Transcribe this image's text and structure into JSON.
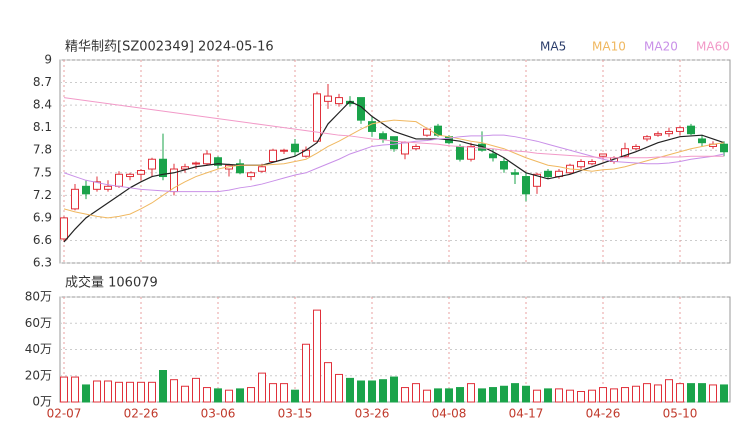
{
  "chart_data": [
    {
      "type": "candlestick",
      "title": "精华制药[SZ002349] 2024-05-16",
      "categories": [
        "02-07",
        null,
        null,
        null,
        null,
        null,
        null,
        "02-26",
        null,
        null,
        null,
        null,
        null,
        null,
        "03-06",
        null,
        null,
        null,
        null,
        null,
        null,
        "03-15",
        null,
        null,
        null,
        null,
        null,
        null,
        "03-26",
        null,
        null,
        null,
        null,
        null,
        null,
        "04-08",
        null,
        null,
        null,
        null,
        null,
        null,
        "04-17",
        null,
        null,
        null,
        null,
        null,
        null,
        "04-26",
        null,
        null,
        null,
        null,
        null,
        null,
        "05-10",
        null,
        null,
        null,
        null
      ],
      "open": [
        6.62,
        7.02,
        7.32,
        7.28,
        7.28,
        7.32,
        7.45,
        7.48,
        7.55,
        7.68,
        7.25,
        7.55,
        7.62,
        7.62,
        7.7,
        7.55,
        7.62,
        7.45,
        7.52,
        7.65,
        7.8,
        7.88,
        7.72,
        7.92,
        8.45,
        8.42,
        8.45,
        8.5,
        8.18,
        8.02,
        7.98,
        7.75,
        7.82,
        8.0,
        8.12,
        7.98,
        7.85,
        7.68,
        7.88,
        7.75,
        7.65,
        7.5,
        7.45,
        7.32,
        7.52,
        7.45,
        7.5,
        7.58,
        7.62,
        7.72,
        7.65,
        7.72,
        7.82,
        7.95,
        8.0,
        8.02,
        8.05,
        8.12,
        7.95,
        7.85,
        7.88
      ],
      "high": [
        6.92,
        7.35,
        7.4,
        7.45,
        7.4,
        7.52,
        7.5,
        7.55,
        7.7,
        8.02,
        7.62,
        7.62,
        7.65,
        7.8,
        7.72,
        7.62,
        7.68,
        7.52,
        7.62,
        7.82,
        7.82,
        7.95,
        7.85,
        8.58,
        8.68,
        8.55,
        8.52,
        8.5,
        8.25,
        8.05,
        7.98,
        7.92,
        7.88,
        8.1,
        8.15,
        8.0,
        7.88,
        7.9,
        8.05,
        7.82,
        7.7,
        7.55,
        7.5,
        7.5,
        7.55,
        7.55,
        7.62,
        7.68,
        7.68,
        7.75,
        7.72,
        7.9,
        7.88,
        8.0,
        8.05,
        8.1,
        8.12,
        8.15,
        8.0,
        7.92,
        7.92
      ],
      "low": [
        6.58,
        7.0,
        7.15,
        7.25,
        7.25,
        7.3,
        7.4,
        7.4,
        7.45,
        7.4,
        7.2,
        7.5,
        7.55,
        7.6,
        7.55,
        7.45,
        7.48,
        7.4,
        7.5,
        7.65,
        7.75,
        7.72,
        7.7,
        7.92,
        8.35,
        8.38,
        8.38,
        8.15,
        7.98,
        7.9,
        7.78,
        7.68,
        7.8,
        7.98,
        7.98,
        7.88,
        7.65,
        7.65,
        7.78,
        7.65,
        7.5,
        7.35,
        7.12,
        7.22,
        7.42,
        7.42,
        7.48,
        7.55,
        7.6,
        7.68,
        7.62,
        7.7,
        7.8,
        7.92,
        7.98,
        7.98,
        8.0,
        8.0,
        7.85,
        7.82,
        7.72
      ],
      "close": [
        6.9,
        7.28,
        7.22,
        7.38,
        7.32,
        7.48,
        7.48,
        7.53,
        7.68,
        7.45,
        7.55,
        7.58,
        7.63,
        7.75,
        7.6,
        7.6,
        7.5,
        7.5,
        7.58,
        7.8,
        7.8,
        7.78,
        7.8,
        8.55,
        8.52,
        8.5,
        8.42,
        8.2,
        8.05,
        7.95,
        7.82,
        7.9,
        7.85,
        8.08,
        8.0,
        7.9,
        7.68,
        7.85,
        7.8,
        7.7,
        7.55,
        7.48,
        7.22,
        7.48,
        7.45,
        7.52,
        7.6,
        7.65,
        7.65,
        7.75,
        7.7,
        7.82,
        7.85,
        7.98,
        8.02,
        8.05,
        8.1,
        8.02,
        7.9,
        7.88,
        7.78
      ],
      "up_color": "#e0303a",
      "down_color": "#1aa34a",
      "series": [
        {
          "name": "MA5",
          "color": "#222222",
          "values": [
            6.58,
            6.75,
            6.9,
            7.0,
            7.1,
            7.2,
            7.3,
            7.38,
            7.45,
            7.48,
            7.5,
            7.54,
            7.58,
            7.6,
            7.62,
            7.61,
            7.6,
            7.6,
            7.6,
            7.64,
            7.68,
            7.72,
            7.8,
            7.9,
            8.15,
            8.3,
            8.45,
            8.38,
            8.25,
            8.15,
            8.05,
            8.0,
            7.95,
            7.95,
            7.95,
            7.94,
            7.92,
            7.88,
            7.85,
            7.78,
            7.7,
            7.6,
            7.5,
            7.46,
            7.42,
            7.45,
            7.48,
            7.53,
            7.58,
            7.63,
            7.68,
            7.73,
            7.78,
            7.84,
            7.9,
            7.94,
            7.98,
            7.99,
            8.0,
            7.95,
            7.9
          ]
        },
        {
          "name": "MA10",
          "color": "#f0b860",
          "values": [
            7.02,
            6.98,
            6.95,
            6.92,
            6.9,
            6.92,
            6.95,
            7.02,
            7.1,
            7.2,
            7.3,
            7.38,
            7.45,
            7.5,
            7.55,
            7.58,
            7.6,
            7.6,
            7.6,
            7.61,
            7.62,
            7.65,
            7.68,
            7.76,
            7.85,
            7.92,
            8.0,
            8.08,
            8.15,
            8.18,
            8.2,
            8.19,
            8.18,
            8.09,
            8.0,
            7.98,
            7.95,
            7.92,
            7.9,
            7.86,
            7.82,
            7.76,
            7.7,
            7.65,
            7.6,
            7.58,
            7.55,
            7.54,
            7.52,
            7.54,
            7.55,
            7.58,
            7.62,
            7.66,
            7.7,
            7.74,
            7.78,
            7.82,
            7.85,
            7.88,
            7.9
          ]
        },
        {
          "name": "MA20",
          "color": "#c990e8",
          "values": [
            7.5,
            7.45,
            7.4,
            7.37,
            7.34,
            7.32,
            7.3,
            7.28,
            7.27,
            7.26,
            7.25,
            7.25,
            7.25,
            7.25,
            7.25,
            7.27,
            7.3,
            7.32,
            7.35,
            7.39,
            7.43,
            7.47,
            7.5,
            7.56,
            7.62,
            7.68,
            7.75,
            7.8,
            7.85,
            7.87,
            7.88,
            7.9,
            7.92,
            7.93,
            7.95,
            7.96,
            7.98,
            7.99,
            7.99,
            8.0,
            8.0,
            7.98,
            7.95,
            7.92,
            7.88,
            7.84,
            7.8,
            7.76,
            7.72,
            7.68,
            7.65,
            7.64,
            7.63,
            7.62,
            7.62,
            7.63,
            7.65,
            7.68,
            7.7,
            7.72,
            7.75
          ]
        },
        {
          "name": "MA60",
          "color": "#f29ac8",
          "values": [
            8.5,
            8.48,
            8.46,
            8.44,
            8.42,
            8.4,
            8.38,
            8.36,
            8.34,
            8.32,
            8.3,
            8.28,
            8.26,
            8.24,
            8.22,
            8.2,
            8.18,
            8.16,
            8.14,
            8.12,
            8.1,
            8.08,
            8.06,
            8.04,
            8.02,
            8.0,
            7.99,
            7.97,
            7.95,
            7.94,
            7.92,
            7.91,
            7.9,
            7.89,
            7.88,
            7.86,
            7.85,
            7.84,
            7.83,
            7.82,
            7.8,
            7.79,
            7.78,
            7.76,
            7.75,
            7.74,
            7.73,
            7.72,
            7.71,
            7.7,
            7.7,
            7.7,
            7.7,
            7.7,
            7.71,
            7.71,
            7.71,
            7.72,
            7.72,
            7.72,
            7.72
          ]
        }
      ],
      "ylim": [
        6.3,
        9
      ],
      "yticks": [
        6.3,
        6.6,
        6.9,
        7.2,
        7.5,
        7.8,
        8.1,
        8.4,
        8.7,
        9
      ],
      "grid": true
    },
    {
      "type": "bar",
      "title": "成交量 106079",
      "values": [
        19,
        19,
        13,
        16,
        16,
        15,
        15,
        15,
        15,
        24,
        17,
        12,
        18,
        11,
        10,
        9,
        10,
        11,
        22,
        14,
        14,
        9,
        44,
        70,
        30,
        21,
        18,
        16,
        16,
        17,
        19,
        11,
        14,
        9,
        10,
        10,
        11,
        14,
        10,
        11,
        12,
        14,
        12,
        9,
        10,
        10,
        9,
        8,
        9,
        11,
        10,
        11,
        12,
        14,
        13,
        17,
        14,
        14,
        14,
        13,
        13
      ],
      "ylim": [
        0,
        80
      ],
      "yticks": [
        {
          "value": 0,
          "label": "0万"
        },
        {
          "value": 20,
          "label": "20万"
        },
        {
          "value": 40,
          "label": "40万"
        },
        {
          "value": 60,
          "label": "60万"
        },
        {
          "value": 80,
          "label": "80万"
        }
      ],
      "grid": true
    }
  ]
}
